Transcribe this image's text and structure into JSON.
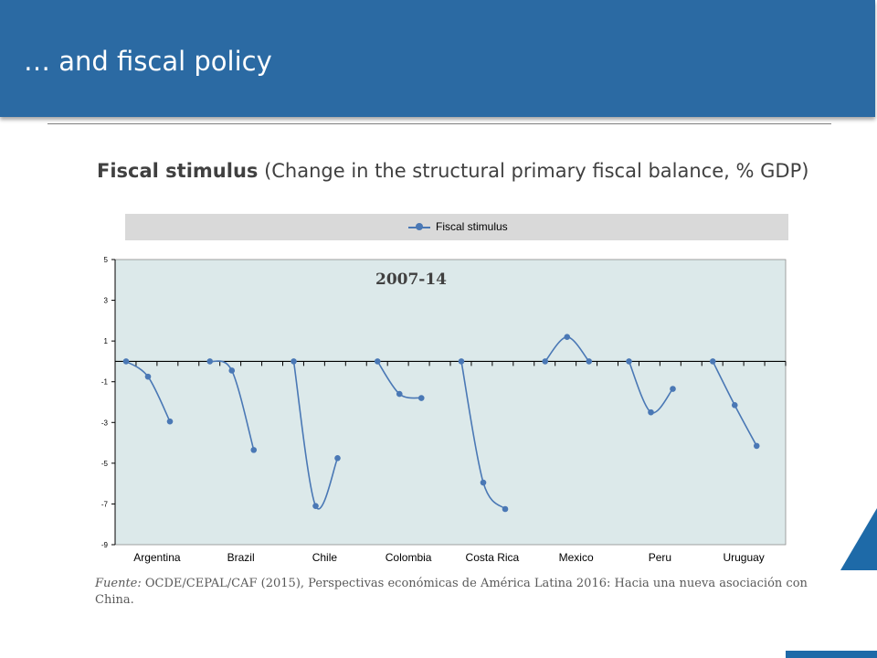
{
  "header": {
    "title": "… and fiscal policy"
  },
  "subtitle": {
    "bold": "Fiscal stimulus",
    "rest": " (Change in the structural primary  fiscal balance, % GDP)"
  },
  "source": {
    "label": "Fuente:",
    "text": " OCDE/CEPAL/CAF (2015), Perspectivas económicas de América Latina 2016: Hacia una nueva asociación con China."
  },
  "colors": {
    "header": "#2b6aa3",
    "plot_bg": "#dce9ea",
    "series": "#4a78b5",
    "legend_bg": "#d9d9d9"
  },
  "chart_data": {
    "type": "line",
    "annotation": "2007-14",
    "ylim": [
      -9,
      5
    ],
    "yticks": [
      5,
      3,
      1,
      -1,
      -3,
      -5,
      -7,
      -9
    ],
    "legend": {
      "position": "top",
      "entries": [
        "Fiscal stimulus"
      ]
    },
    "categories": [
      "Argentina",
      "Brazil",
      "Chile",
      "Colombia",
      "Costa Rica",
      "Mexico",
      "Peru",
      "Uruguay"
    ],
    "series": [
      {
        "name": "Fiscal stimulus",
        "groups": [
          {
            "country": "Argentina",
            "values": [
              0,
              -0.75,
              -2.95
            ]
          },
          {
            "country": "Brazil",
            "values": [
              0,
              -0.45,
              -4.35
            ]
          },
          {
            "country": "Chile",
            "values": [
              0,
              -7.1,
              -4.75
            ]
          },
          {
            "country": "Colombia",
            "values": [
              0,
              -1.6,
              -1.8
            ]
          },
          {
            "country": "Costa Rica",
            "values": [
              0,
              -5.95,
              -7.25
            ]
          },
          {
            "country": "Mexico",
            "values": [
              0,
              1.2,
              0
            ]
          },
          {
            "country": "Peru",
            "values": [
              0,
              -2.5,
              -1.35
            ]
          },
          {
            "country": "Uruguay",
            "values": [
              0,
              -2.15,
              -4.15
            ]
          }
        ]
      }
    ]
  }
}
